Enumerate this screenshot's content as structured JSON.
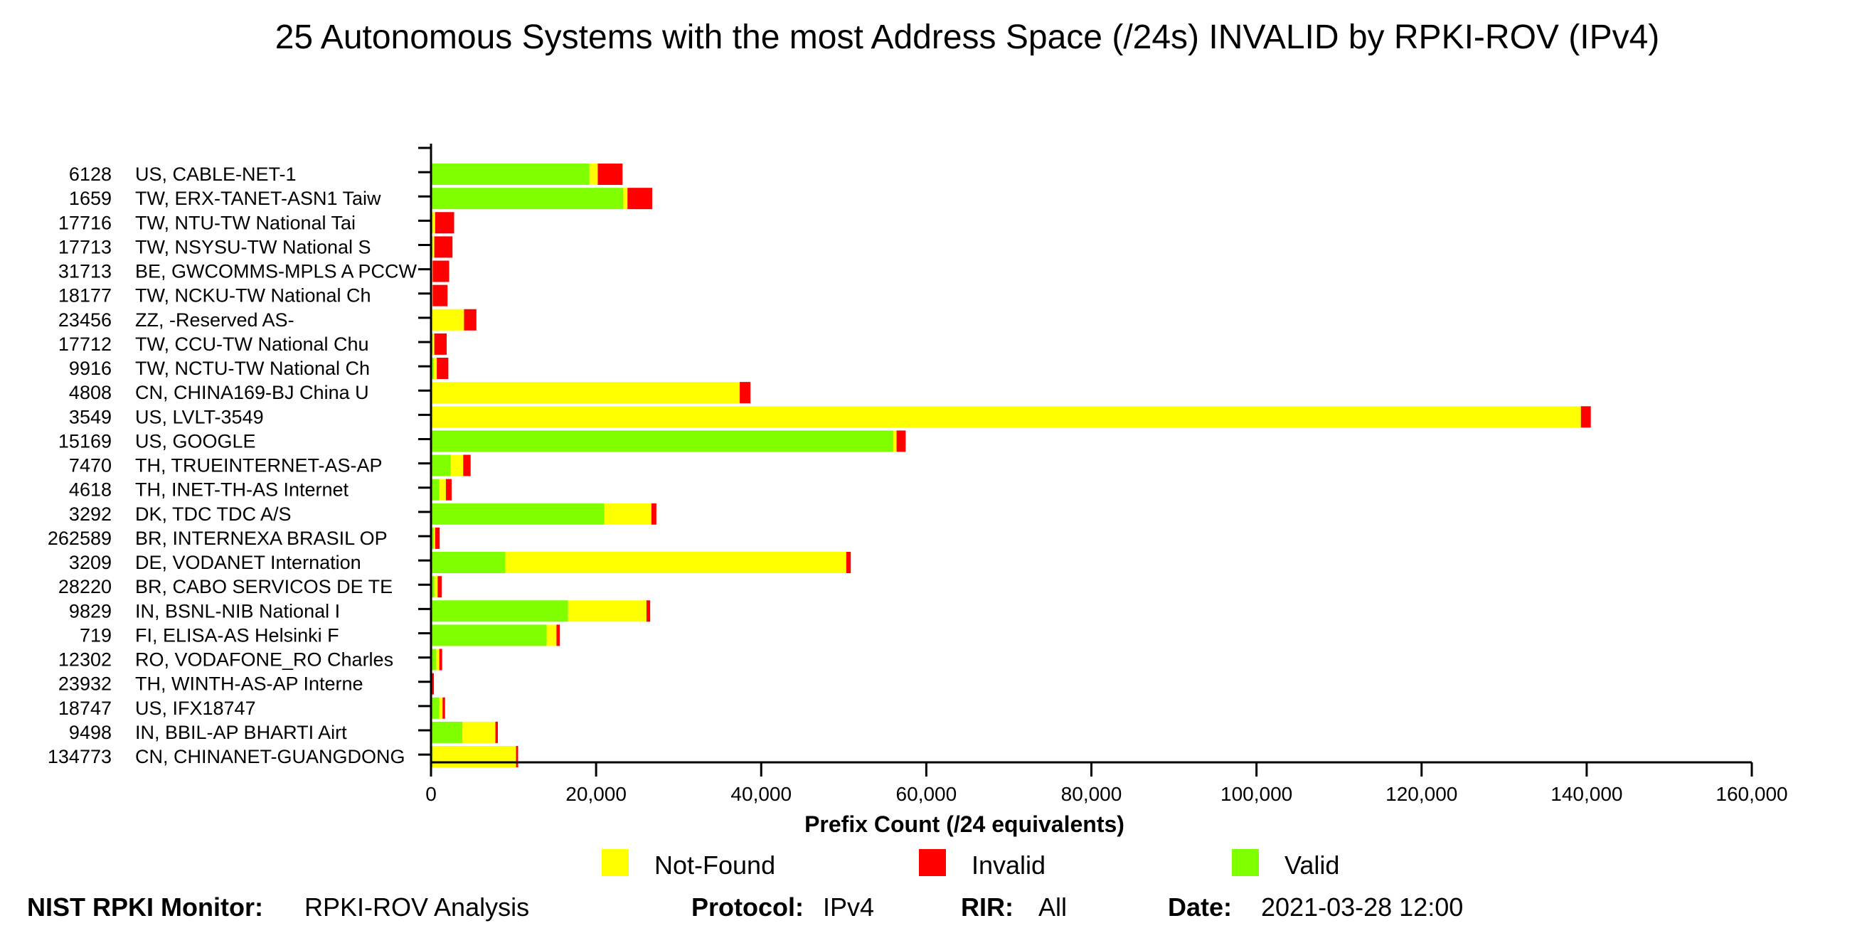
{
  "chart_data": {
    "type": "bar",
    "orientation": "horizontal",
    "stacked": true,
    "title": "25 Autonomous Systems with the most Address Space (/24s) INVALID by RPKI-ROV (IPv4)",
    "xlabel": "Prefix Count (/24 equivalents)",
    "ylabel": "",
    "xlim": [
      0,
      160000
    ],
    "xticks": [
      "0",
      "20,000",
      "40,000",
      "60,000",
      "80,000",
      "100,000",
      "120,000",
      "140,000",
      "160,000"
    ],
    "xtick_values": [
      0,
      20000,
      40000,
      60000,
      80000,
      100000,
      120000,
      140000,
      160000
    ],
    "grid": false,
    "legend_position": "bottom",
    "categories": [
      {
        "asn": "6128",
        "name": "US, CABLE-NET-1"
      },
      {
        "asn": "1659",
        "name": "TW, ERX-TANET-ASN1 Taiw"
      },
      {
        "asn": "17716",
        "name": "TW, NTU-TW National Tai"
      },
      {
        "asn": "17713",
        "name": "TW, NSYSU-TW National S"
      },
      {
        "asn": "31713",
        "name": "BE, GWCOMMS-MPLS A PCCW"
      },
      {
        "asn": "18177",
        "name": "TW, NCKU-TW National Ch"
      },
      {
        "asn": "23456",
        "name": "ZZ, -Reserved AS-"
      },
      {
        "asn": "17712",
        "name": "TW, CCU-TW National Chu"
      },
      {
        "asn": "9916",
        "name": "TW, NCTU-TW National Ch"
      },
      {
        "asn": "4808",
        "name": "CN, CHINA169-BJ China U"
      },
      {
        "asn": "3549",
        "name": "US, LVLT-3549"
      },
      {
        "asn": "15169",
        "name": "US, GOOGLE"
      },
      {
        "asn": "7470",
        "name": "TH, TRUEINTERNET-AS-AP"
      },
      {
        "asn": "4618",
        "name": "TH, INET-TH-AS Internet"
      },
      {
        "asn": "3292",
        "name": "DK, TDC TDC A/S"
      },
      {
        "asn": "262589",
        "name": "BR, INTERNEXA BRASIL OP"
      },
      {
        "asn": "3209",
        "name": "DE, VODANET Internation"
      },
      {
        "asn": "28220",
        "name": "BR, CABO SERVICOS DE TE"
      },
      {
        "asn": "9829",
        "name": "IN, BSNL-NIB National I"
      },
      {
        "asn": "719",
        "name": "FI, ELISA-AS Helsinki F"
      },
      {
        "asn": "12302",
        "name": "RO, VODAFONE_RO Charles"
      },
      {
        "asn": "23932",
        "name": "TH, WINTH-AS-AP Interne"
      },
      {
        "asn": "18747",
        "name": "US, IFX18747"
      },
      {
        "asn": "9498",
        "name": "IN, BBIL-AP BHARTI Airt"
      },
      {
        "asn": "134773",
        "name": "CN, CHINANET-GUANGDONG"
      }
    ],
    "series": [
      {
        "name": "Valid",
        "color": "#7fff00",
        "values": [
          19200,
          23300,
          200,
          200,
          0,
          0,
          0,
          200,
          300,
          100,
          0,
          56000,
          2400,
          1000,
          21000,
          300,
          9000,
          400,
          16600,
          14000,
          600,
          0,
          1000,
          3800,
          200
        ]
      },
      {
        "name": "Not-Found",
        "color": "#ffff00",
        "values": [
          1000,
          500,
          300,
          200,
          200,
          200,
          4000,
          200,
          400,
          37300,
          139300,
          400,
          1500,
          800,
          5700,
          200,
          41300,
          400,
          9500,
          1200,
          400,
          0,
          400,
          4000,
          10100
        ]
      },
      {
        "name": "Invalid",
        "color": "#ff0000",
        "values": [
          3000,
          3000,
          2300,
          2200,
          2000,
          1800,
          1500,
          1500,
          1400,
          1300,
          1200,
          1100,
          900,
          700,
          600,
          550,
          550,
          500,
          450,
          400,
          350,
          350,
          300,
          300,
          250
        ]
      }
    ]
  },
  "legend": {
    "items": [
      {
        "label": "Not-Found",
        "color": "#ffff00"
      },
      {
        "label": "Invalid",
        "color": "#ff0000"
      },
      {
        "label": "Valid",
        "color": "#7fff00"
      }
    ]
  },
  "footer": {
    "monitor_label": "NIST RPKI Monitor:",
    "monitor_value": "RPKI-ROV Analysis",
    "protocol_label": "Protocol:",
    "protocol_value": "IPv4",
    "rir_label": "RIR:",
    "rir_value": "All",
    "date_label": "Date:",
    "date_value": "2021-03-28 12:00"
  }
}
